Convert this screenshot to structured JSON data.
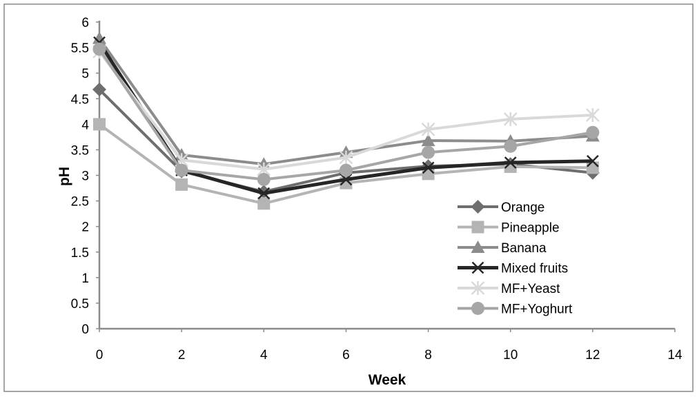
{
  "chart_data": {
    "type": "line",
    "title": "",
    "xlabel": "Week",
    "ylabel": "pH",
    "xlim": [
      0,
      14
    ],
    "ylim": [
      0,
      6
    ],
    "x_ticks": [
      "0",
      "2",
      "4",
      "6",
      "8",
      "10",
      "12",
      "14"
    ],
    "y_ticks": [
      "0",
      "0.5",
      "1",
      "1.5",
      "2",
      "2.5",
      "3",
      "3.5",
      "4",
      "4.5",
      "5",
      "5.5",
      "6"
    ],
    "grid": false,
    "legend_position": "right",
    "x": [
      0,
      2,
      4,
      6,
      8,
      10,
      12
    ],
    "series": [
      {
        "name": "Orange",
        "marker": "diamond",
        "color": "#6e6e6e",
        "stroke_width": 4,
        "values": [
          4.68,
          3.08,
          2.68,
          3.05,
          3.18,
          3.22,
          3.05
        ]
      },
      {
        "name": "Pineapple",
        "marker": "square",
        "color": "#b4b4b4",
        "stroke_width": 4,
        "values": [
          4.0,
          2.82,
          2.45,
          2.85,
          3.03,
          3.17,
          3.15
        ]
      },
      {
        "name": "Banana",
        "marker": "triangle",
        "color": "#8c8c8c",
        "stroke_width": 4,
        "values": [
          5.68,
          3.4,
          3.22,
          3.45,
          3.68,
          3.67,
          3.77
        ]
      },
      {
        "name": "Mixed fruits",
        "marker": "x",
        "color": "#262626",
        "stroke_width": 5,
        "values": [
          5.6,
          3.1,
          2.65,
          2.92,
          3.15,
          3.25,
          3.28
        ]
      },
      {
        "name": "MF+Yeast",
        "marker": "asterisk",
        "color": "#d9d9d9",
        "stroke_width": 4,
        "values": [
          5.42,
          3.3,
          3.12,
          3.35,
          3.9,
          4.1,
          4.18
        ]
      },
      {
        "name": "MF+Yoghurt",
        "marker": "circle",
        "color": "#a6a6a6",
        "stroke_width": 4,
        "values": [
          5.47,
          3.1,
          2.92,
          3.1,
          3.45,
          3.57,
          3.84
        ]
      }
    ]
  }
}
